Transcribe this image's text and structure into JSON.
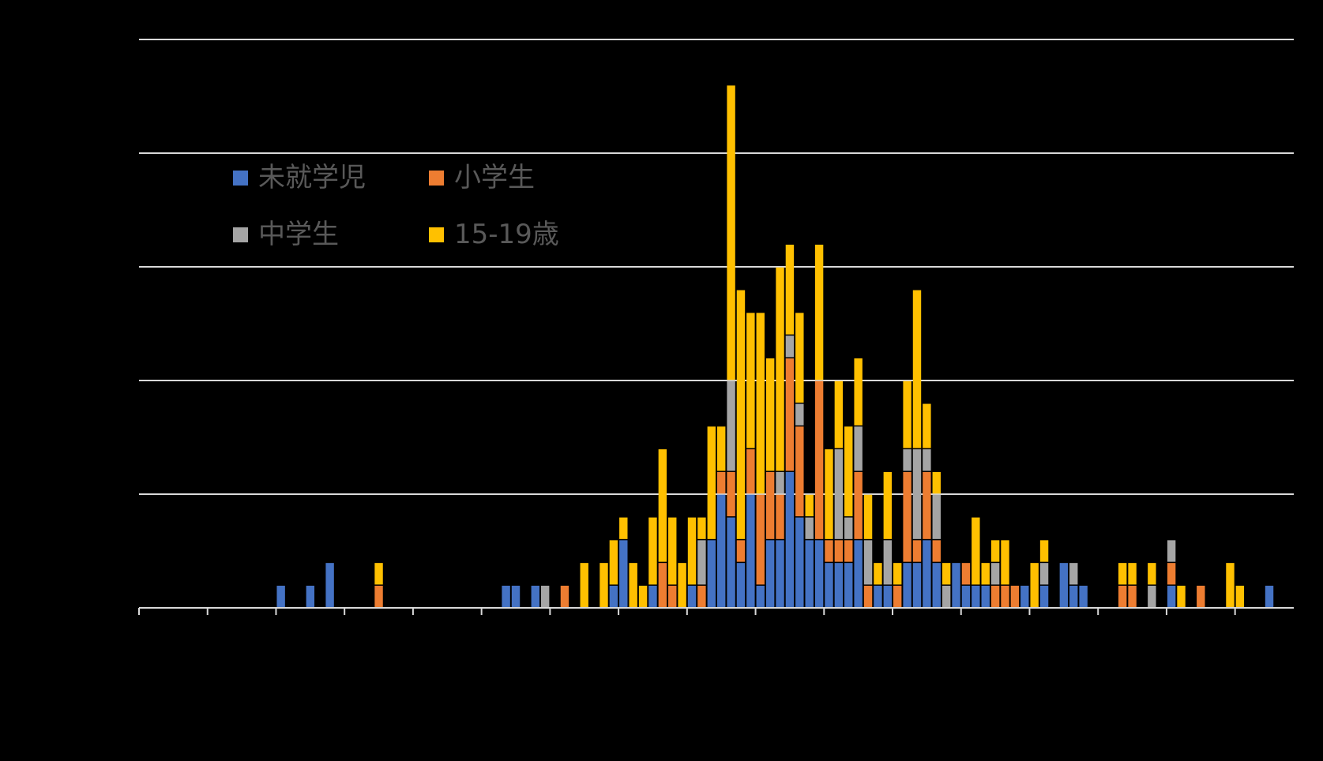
{
  "chart_data": {
    "type": "bar",
    "stacked": true,
    "title": "",
    "xlabel": "",
    "ylabel": "",
    "ylim": [
      0,
      25
    ],
    "y_gridlines": [
      5,
      10,
      15,
      20,
      25
    ],
    "x_tick_every": 7,
    "grid": true,
    "legend_position": "upper-left (inside plot)",
    "num_categories": 118,
    "series": [
      {
        "name": "未就学児",
        "color": "#4472C4",
        "points": {
          "14": 1,
          "17": 1,
          "19": 2,
          "37": 1,
          "38": 1,
          "40": 1,
          "48": 1,
          "49": 3,
          "52": 1,
          "56": 1,
          "58": 3,
          "59": 5,
          "60": 4,
          "61": 2,
          "62": 5,
          "63": 1,
          "64": 3,
          "65": 3,
          "66": 6,
          "67": 4,
          "68": 3,
          "69": 3,
          "70": 2,
          "71": 2,
          "72": 2,
          "73": 3,
          "75": 1,
          "76": 1,
          "78": 2,
          "79": 2,
          "80": 3,
          "81": 2,
          "83": 2,
          "84": 1,
          "85": 1,
          "86": 1,
          "90": 1,
          "92": 1,
          "94": 2,
          "95": 1,
          "96": 1,
          "105": 1,
          "115": 1
        }
      },
      {
        "name": "小学生",
        "color": "#ED7D31",
        "points": {
          "24": 1,
          "43": 1,
          "53": 2,
          "54": 1,
          "57": 1,
          "59": 1,
          "60": 2,
          "61": 1,
          "62": 2,
          "63": 4,
          "64": 3,
          "65": 2,
          "66": 5,
          "67": 4,
          "69": 7,
          "70": 1,
          "71": 1,
          "72": 1,
          "73": 3,
          "74": 1,
          "77": 1,
          "78": 4,
          "79": 1,
          "80": 3,
          "81": 1,
          "84": 1,
          "87": 1,
          "88": 1,
          "89": 1,
          "100": 1,
          "101": 1,
          "105": 1,
          "108": 1
        }
      },
      {
        "name": "中学生",
        "color": "#A5A5A5",
        "points": {
          "41": 1,
          "57": 2,
          "60": 4,
          "65": 1,
          "66": 1,
          "67": 1,
          "68": 1,
          "71": 4,
          "72": 1,
          "73": 2,
          "74": 2,
          "76": 2,
          "78": 1,
          "79": 4,
          "80": 1,
          "81": 2,
          "82": 1,
          "87": 1,
          "92": 1,
          "95": 1,
          "103": 1,
          "105": 1
        }
      },
      {
        "name": "15-19歳",
        "color": "#FFC000",
        "points": {
          "24": 1,
          "45": 2,
          "47": 2,
          "48": 2,
          "49": 1,
          "50": 2,
          "51": 1,
          "52": 3,
          "53": 5,
          "54": 3,
          "55": 2,
          "56": 3,
          "57": 1,
          "58": 5,
          "59": 2,
          "60": 13,
          "61": 11,
          "62": 6,
          "63": 8,
          "64": 5,
          "65": 9,
          "66": 4,
          "67": 4,
          "68": 1,
          "69": 6,
          "70": 4,
          "71": 3,
          "72": 4,
          "73": 3,
          "74": 2,
          "75": 1,
          "76": 3,
          "77": 1,
          "78": 3,
          "79": 7,
          "80": 2,
          "81": 1,
          "82": 1,
          "85": 3,
          "86": 1,
          "87": 1,
          "88": 2,
          "91": 2,
          "92": 1,
          "100": 1,
          "101": 1,
          "103": 1,
          "106": 1,
          "111": 2,
          "112": 1
        }
      }
    ]
  },
  "legend": {
    "items": [
      {
        "label": "未就学児",
        "color": "#4472C4"
      },
      {
        "label": "小学生",
        "color": "#ED7D31"
      },
      {
        "label": "中学生",
        "color": "#A5A5A5"
      },
      {
        "label": "15-19歳",
        "color": "#FFC000"
      }
    ]
  },
  "style": {
    "background": "#000000",
    "gridline_color": "#D9D9D9",
    "legend_text_color": "#595959"
  }
}
